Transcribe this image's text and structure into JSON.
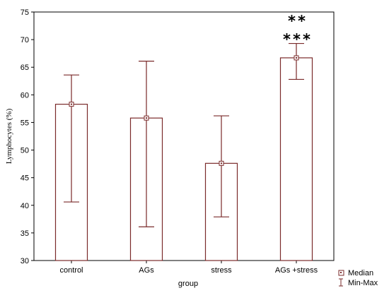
{
  "chart_data": {
    "type": "bar",
    "categories": [
      "control",
      "AGs",
      "stress",
      "AGs +stress"
    ],
    "values": [
      58.3,
      55.8,
      47.6,
      66.7
    ],
    "min": [
      40.6,
      36.1,
      37.9,
      62.8
    ],
    "max": [
      63.6,
      66.1,
      56.2,
      69.3
    ],
    "xlabel": "group",
    "ylabel": "Lymphocytes (%)",
    "ylim": [
      30,
      75
    ],
    "yticks": [
      30,
      35,
      40,
      45,
      50,
      55,
      60,
      65,
      70,
      75
    ],
    "grid": false,
    "legend": {
      "position": "bottom-right",
      "entries": [
        {
          "label": "Median",
          "marker": "square-dot"
        },
        {
          "label": "Min-Max",
          "marker": "whisker"
        }
      ]
    },
    "annotations": [
      {
        "category": "AGs +stress",
        "lines": [
          "**",
          "***"
        ]
      }
    ],
    "colors": {
      "bar_fill": "#ffffff",
      "bar_stroke": "#7a2a2a",
      "whisker": "#7a2a2a",
      "marker": "#7a2a2a",
      "axis": "#000000"
    }
  }
}
